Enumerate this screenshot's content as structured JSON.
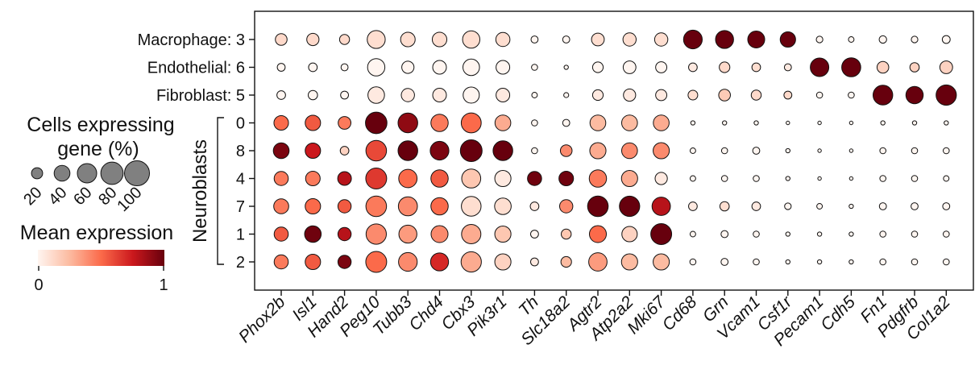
{
  "chart_data": {
    "type": "dotplot",
    "row_labels": [
      "Macrophage: 3",
      "Endothelial: 6",
      "Fibroblast: 5",
      "0",
      "8",
      "4",
      "7",
      "1",
      "2"
    ],
    "row_group": {
      "label": "Neuroblasts",
      "rows": [
        "0",
        "8",
        "4",
        "7",
        "1",
        "2"
      ]
    },
    "genes": [
      "Phox2b",
      "Isl1",
      "Hand2",
      "Peg10",
      "Tubb3",
      "Chd4",
      "Cbx3",
      "Pik3r1",
      "Th",
      "Slc18a2",
      "Agtr2",
      "Atp2a2",
      "Mki67",
      "Cd68",
      "Grn",
      "Vcam1",
      "Csf1r",
      "Pecam1",
      "Cdh5",
      "Fn1",
      "Pdgfrb",
      "Col1a2"
    ],
    "pct_expressing": [
      [
        22,
        24,
        16,
        52,
        34,
        34,
        48,
        32,
        8,
        8,
        26,
        28,
        28,
        56,
        52,
        46,
        38,
        7,
        5,
        9,
        7,
        10
      ],
      [
        10,
        12,
        8,
        48,
        24,
        30,
        44,
        30,
        6,
        3,
        18,
        26,
        20,
        12,
        18,
        12,
        8,
        55,
        58,
        22,
        14,
        26
      ],
      [
        12,
        14,
        10,
        44,
        28,
        30,
        42,
        30,
        5,
        4,
        18,
        24,
        20,
        15,
        22,
        16,
        10,
        6,
        6,
        62,
        48,
        66
      ],
      [
        34,
        38,
        26,
        74,
        62,
        48,
        64,
        40,
        6,
        8,
        40,
        40,
        40,
        3,
        3,
        3,
        2,
        2,
        2,
        3,
        3,
        3
      ],
      [
        40,
        38,
        12,
        68,
        62,
        56,
        76,
        62,
        6,
        22,
        42,
        40,
        42,
        5,
        6,
        8,
        3,
        2,
        2,
        6,
        6,
        6
      ],
      [
        32,
        34,
        30,
        70,
        54,
        48,
        58,
        42,
        32,
        34,
        48,
        42,
        24,
        5,
        6,
        6,
        3,
        2,
        2,
        6,
        6,
        5
      ],
      [
        36,
        38,
        28,
        68,
        58,
        48,
        62,
        44,
        12,
        28,
        68,
        66,
        54,
        12,
        14,
        12,
        7,
        5,
        3,
        8,
        8,
        8
      ],
      [
        32,
        44,
        28,
        66,
        52,
        46,
        60,
        42,
        10,
        16,
        46,
        38,
        70,
        5,
        8,
        6,
        3,
        3,
        3,
        6,
        6,
        6
      ],
      [
        32,
        38,
        28,
        70,
        56,
        52,
        66,
        42,
        10,
        18,
        54,
        42,
        42,
        6,
        8,
        6,
        3,
        3,
        3,
        6,
        6,
        6
      ]
    ],
    "mean_expression": [
      [
        0.12,
        0.12,
        0.12,
        0.1,
        0.1,
        0.1,
        0.1,
        0.1,
        0.0,
        0.0,
        0.1,
        0.1,
        0.1,
        1.0,
        1.0,
        1.0,
        1.0,
        0.0,
        0.0,
        0.0,
        0.0,
        0.0
      ],
      [
        0.0,
        0.0,
        0.0,
        0.0,
        0.0,
        0.0,
        0.0,
        0.0,
        0.0,
        0.0,
        0.0,
        0.0,
        0.0,
        0.05,
        0.12,
        0.1,
        0.05,
        1.0,
        1.0,
        0.15,
        0.15,
        0.15
      ],
      [
        0.0,
        0.0,
        0.0,
        0.05,
        0.05,
        0.05,
        0.0,
        0.05,
        0.0,
        0.0,
        0.05,
        0.05,
        0.05,
        0.1,
        0.18,
        0.12,
        0.12,
        0.0,
        0.0,
        1.0,
        1.0,
        1.0
      ],
      [
        0.5,
        0.55,
        0.45,
        1.0,
        0.9,
        0.45,
        0.5,
        0.3,
        0.0,
        0.0,
        0.25,
        0.25,
        0.3,
        0.0,
        0.0,
        0.0,
        0.0,
        0.0,
        0.0,
        0.0,
        0.0,
        0.0
      ],
      [
        0.95,
        0.75,
        0.15,
        0.6,
        1.0,
        0.95,
        1.0,
        1.0,
        0.0,
        0.4,
        0.3,
        0.4,
        0.4,
        0.0,
        0.0,
        0.0,
        0.0,
        0.0,
        0.0,
        0.0,
        0.0,
        0.0
      ],
      [
        0.45,
        0.45,
        0.8,
        0.65,
        0.5,
        0.55,
        0.2,
        0.05,
        0.98,
        0.98,
        0.45,
        0.3,
        0.05,
        0.0,
        0.0,
        0.0,
        0.0,
        0.0,
        0.0,
        0.0,
        0.0,
        0.0
      ],
      [
        0.45,
        0.5,
        0.55,
        0.45,
        0.4,
        0.5,
        0.1,
        0.1,
        0.05,
        0.4,
        1.0,
        1.0,
        0.8,
        0.05,
        0.1,
        0.05,
        0.0,
        0.0,
        0.0,
        0.0,
        0.0,
        0.0
      ],
      [
        0.55,
        0.98,
        0.8,
        0.4,
        0.35,
        0.4,
        0.3,
        0.2,
        0.0,
        0.2,
        0.5,
        0.15,
        1.0,
        0.0,
        0.0,
        0.0,
        0.0,
        0.0,
        0.0,
        0.0,
        0.0,
        0.0
      ],
      [
        0.45,
        0.55,
        0.95,
        0.5,
        0.4,
        0.7,
        0.3,
        0.15,
        0.05,
        0.25,
        0.35,
        0.25,
        0.25,
        0.0,
        0.0,
        0.0,
        0.0,
        0.0,
        0.0,
        0.0,
        0.0,
        0.0
      ]
    ],
    "size_legend": {
      "title_line1": "Cells expressing",
      "title_line2": "gene (%)",
      "values": [
        20,
        40,
        60,
        80,
        100
      ]
    },
    "color_legend": {
      "title": "Mean expression",
      "min": 0,
      "max": 1,
      "min_label": "0",
      "max_label": "1",
      "colors": [
        "#fff5f0",
        "#fcbba1",
        "#fb6a4a",
        "#cb181d",
        "#67000d"
      ]
    },
    "ylabel": "",
    "xlabel": ""
  }
}
